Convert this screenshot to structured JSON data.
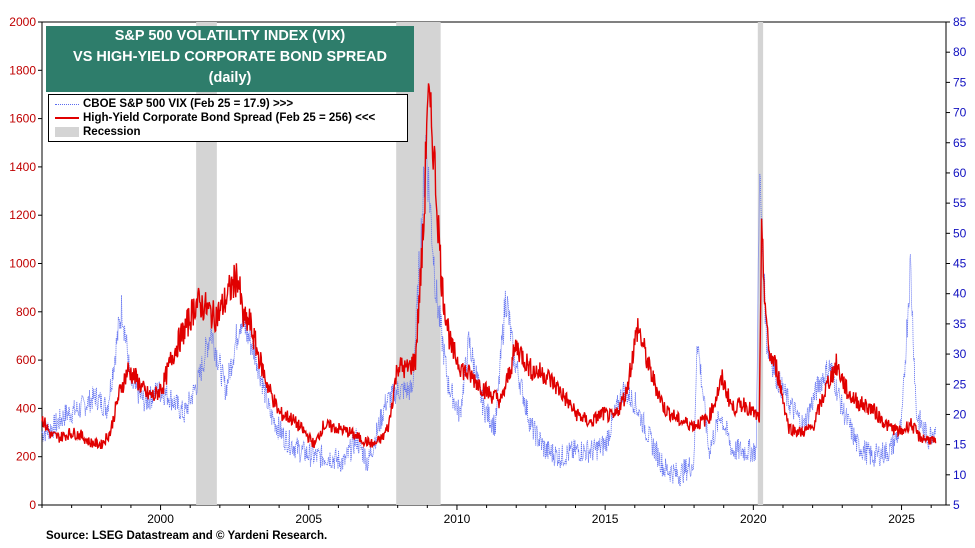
{
  "title": {
    "line1": "S&P 500 VOLATILITY INDEX (VIX)",
    "line2": "VS HIGH-YIELD CORPORATE BOND SPREAD",
    "line3": "(daily)"
  },
  "legend": {
    "vix": "CBOE S&P 500 VIX (Feb 25 = 17.9) >>>",
    "hy": "High-Yield Corporate Bond Spread (Feb 25 = 256) <<<",
    "recession": "Recession"
  },
  "source": "Source: LSEG Datastream and © Yardeni Research.",
  "colors": {
    "vix": "#5b6cf0",
    "hy": "#e00000",
    "recession": "#d4d4d4",
    "title_bg": "#2e7d6b",
    "right_axis": "#1010c0"
  },
  "chart_data": {
    "type": "line",
    "x_range": [
      1996.0,
      2026.5
    ],
    "x_ticks": [
      "2000",
      "2005",
      "2010",
      "2015",
      "2020",
      "2025"
    ],
    "left_axis": {
      "range": [
        0,
        2000
      ],
      "ticks": [
        "0",
        "200",
        "400",
        "600",
        "800",
        "1000",
        "1200",
        "1400",
        "1600",
        "1800",
        "2000"
      ]
    },
    "right_axis": {
      "range": [
        5,
        85
      ],
      "ticks": [
        "5",
        "10",
        "15",
        "20",
        "25",
        "30",
        "35",
        "40",
        "45",
        "50",
        "55",
        "60",
        "65",
        "70",
        "75",
        "80",
        "85"
      ]
    },
    "recessions": [
      [
        2001.2,
        2001.9
      ],
      [
        2007.95,
        2009.45
      ],
      [
        2020.15,
        2020.33
      ]
    ],
    "series": [
      {
        "name": "High-Yield Corporate Bond Spread (Feb 25 = 256)",
        "axis": "left",
        "x": [
          1996.0,
          1996.3,
          1996.6,
          1997.0,
          1997.3,
          1997.6,
          1998.0,
          1998.3,
          1998.6,
          1998.9,
          1999.2,
          1999.5,
          1999.8,
          2000.1,
          2000.4,
          2000.7,
          2000.95,
          2001.2,
          2001.5,
          2001.8,
          2002.0,
          2002.3,
          2002.6,
          2002.8,
          2003.0,
          2003.3,
          2003.6,
          2004.0,
          2004.4,
          2004.8,
          2005.2,
          2005.5,
          2005.9,
          2006.4,
          2006.8,
          2007.2,
          2007.5,
          2007.7,
          2008.0,
          2008.3,
          2008.6,
          2008.9,
          2009.0,
          2009.2,
          2009.5,
          2009.8,
          2010.2,
          2010.6,
          2011.0,
          2011.5,
          2011.75,
          2012.0,
          2012.5,
          2013.0,
          2013.5,
          2014.0,
          2014.5,
          2014.9,
          2015.3,
          2015.7,
          2016.1,
          2016.5,
          2017.0,
          2017.5,
          2018.0,
          2018.5,
          2018.95,
          2019.3,
          2019.7,
          2020.0,
          2020.2,
          2020.28,
          2020.5,
          2020.8,
          2021.2,
          2021.6,
          2022.0,
          2022.5,
          2022.8,
          2023.2,
          2023.6,
          2024.0,
          2024.5,
          2025.0,
          2025.3,
          2025.6,
          2026.0,
          2026.15
        ],
        "values": [
          360,
          290,
          280,
          300,
          290,
          260,
          250,
          300,
          460,
          560,
          520,
          460,
          450,
          500,
          620,
          700,
          760,
          840,
          820,
          780,
          800,
          880,
          950,
          760,
          760,
          620,
          500,
          380,
          360,
          310,
          250,
          330,
          320,
          300,
          270,
          250,
          280,
          330,
          580,
          560,
          600,
          1200,
          1700,
          1500,
          900,
          650,
          560,
          520,
          470,
          430,
          540,
          660,
          560,
          540,
          470,
          380,
          340,
          380,
          360,
          460,
          740,
          560,
          400,
          350,
          330,
          360,
          520,
          400,
          420,
          380,
          360,
          1100,
          640,
          560,
          320,
          300,
          320,
          500,
          580,
          460,
          420,
          400,
          330,
          300,
          340,
          280,
          270,
          256
        ]
      },
      {
        "name": "CBOE S&P 500 VIX (Feb 25 = 17.9)",
        "axis": "right",
        "x": [
          1996.0,
          1996.4,
          1996.8,
          1997.3,
          1997.8,
          1998.2,
          1998.7,
          1999.0,
          1999.5,
          1999.9,
          2000.3,
          2000.8,
          2001.3,
          2001.7,
          2002.2,
          2002.7,
          2003.2,
          2003.7,
          2004.2,
          2004.7,
          2005.2,
          2005.7,
          2006.2,
          2006.6,
          2007.0,
          2007.6,
          2008.0,
          2008.5,
          2008.85,
          2008.95,
          2009.3,
          2009.7,
          2010.1,
          2010.4,
          2010.9,
          2011.3,
          2011.65,
          2011.9,
          2012.5,
          2013.0,
          2013.5,
          2014.0,
          2014.6,
          2015.0,
          2015.6,
          2016.0,
          2016.5,
          2017.0,
          2017.5,
          2018.0,
          2018.1,
          2018.5,
          2018.9,
          2019.3,
          2019.8,
          2020.1,
          2020.2,
          2020.45,
          2020.8,
          2021.2,
          2021.7,
          2022.2,
          2022.6,
          2023.0,
          2023.5,
          2024.0,
          2024.6,
          2025.0,
          2025.3,
          2025.5,
          2025.9,
          2026.15
        ],
        "values": [
          17,
          18,
          20,
          21,
          23,
          21,
          38,
          25,
          22,
          24,
          23,
          20,
          26,
          34,
          24,
          36,
          30,
          20,
          16,
          14,
          13,
          13,
          12,
          16,
          12,
          22,
          24,
          24,
          55,
          65,
          40,
          25,
          20,
          32,
          21,
          18,
          40,
          30,
          18,
          14,
          13,
          14,
          14,
          15,
          24,
          22,
          16,
          11,
          10,
          12,
          33,
          14,
          20,
          14,
          14,
          14,
          60,
          32,
          26,
          22,
          18,
          25,
          28,
          21,
          15,
          13,
          14,
          18,
          45,
          20,
          16,
          17.9
        ]
      }
    ]
  }
}
